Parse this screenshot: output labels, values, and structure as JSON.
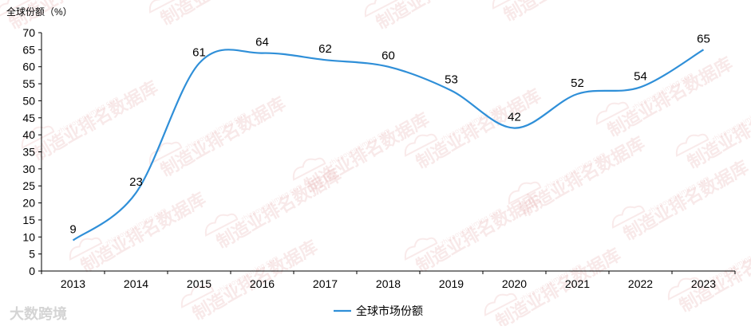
{
  "chart_data": {
    "type": "line",
    "ylabel": "全球份额（%）",
    "categories": [
      "2013",
      "2014",
      "2015",
      "2016",
      "2017",
      "2018",
      "2019",
      "2020",
      "2021",
      "2022",
      "2023"
    ],
    "series": [
      {
        "name": "全球市场份额",
        "color": "#2f8fd8",
        "values": [
          9,
          23,
          61,
          64,
          62,
          60,
          53,
          42,
          52,
          54,
          65
        ]
      }
    ],
    "ylim": [
      0,
      70
    ],
    "yticks": [
      0,
      5,
      10,
      15,
      20,
      25,
      30,
      35,
      40,
      45,
      50,
      55,
      60,
      65,
      70
    ],
    "grid": false,
    "legend": "bottom-center"
  },
  "watermark": {
    "text": "制造业排名数据库",
    "url": "zhizaoyepaiming.com",
    "logo": "大数跨境"
  }
}
